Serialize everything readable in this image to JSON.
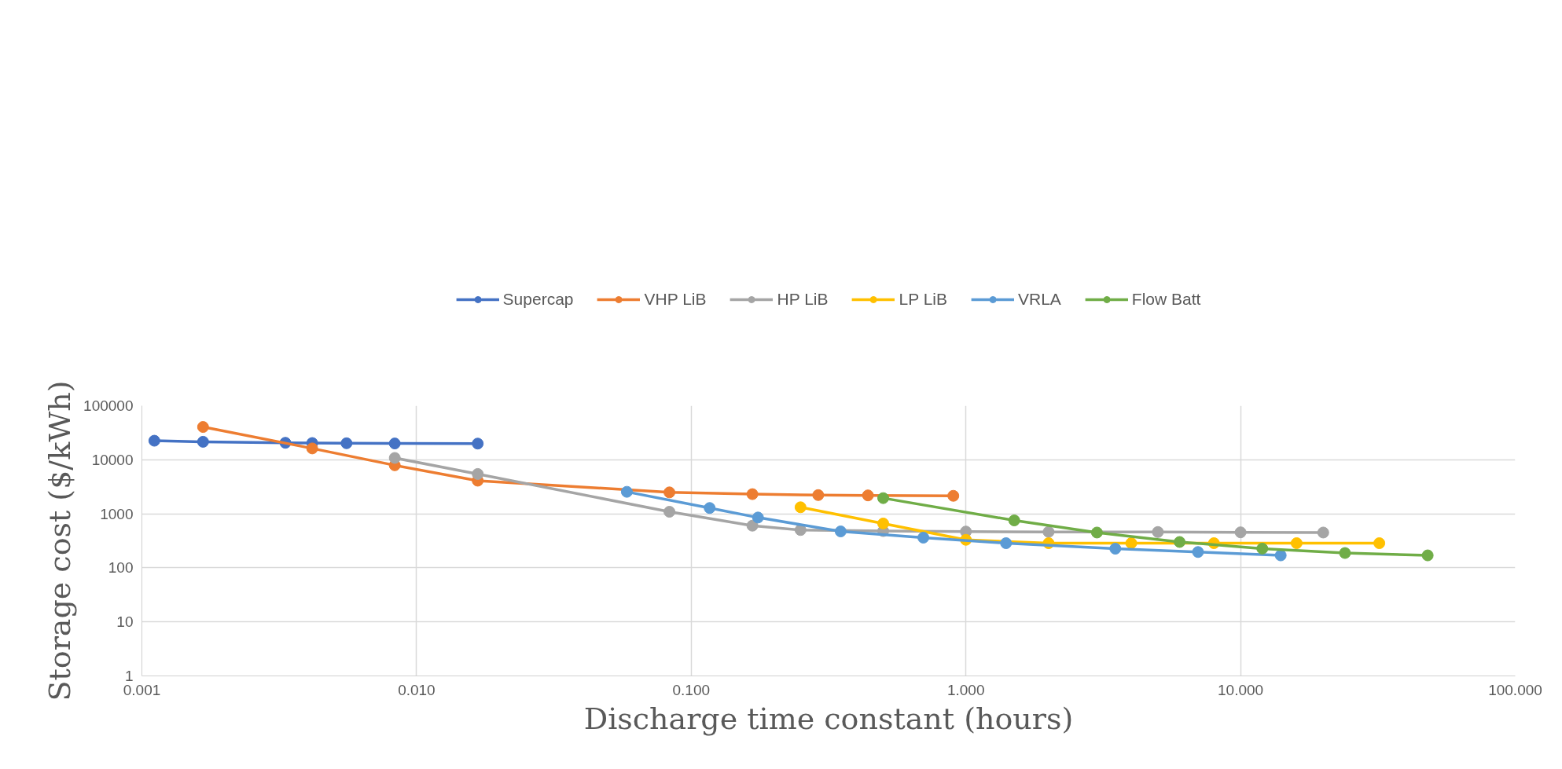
{
  "chart_data": {
    "type": "line",
    "xlabel": "Discharge time constant (hours)",
    "ylabel": "Storage cost ($/kWh)",
    "log": "xy",
    "grid": true,
    "legend": "top",
    "marker": "circle",
    "xlim": [
      0.001,
      100
    ],
    "ylim": [
      1,
      100000
    ],
    "xticks": [
      {
        "value": 0.001,
        "label": "0.001"
      },
      {
        "value": 0.01,
        "label": "0.010"
      },
      {
        "value": 0.1,
        "label": "0.100"
      },
      {
        "value": 1,
        "label": "1.000"
      },
      {
        "value": 10,
        "label": "10.000"
      },
      {
        "value": 100,
        "label": "100.000"
      }
    ],
    "yticks": [
      1,
      10,
      100,
      1000,
      10000,
      100000
    ],
    "series": [
      {
        "name": "Supercap",
        "color": "#4472c4",
        "x": [
          0.00111,
          0.00167,
          0.00333,
          0.00417,
          0.00556,
          0.00833,
          0.0167
        ],
        "values": [
          22500,
          21500,
          20600,
          20400,
          20200,
          20000,
          19900
        ]
      },
      {
        "name": "VHP LiB",
        "color": "#ed7d31",
        "x": [
          0.00167,
          0.00417,
          0.00833,
          0.0167,
          0.0833,
          0.167,
          0.29,
          0.44,
          0.9
        ],
        "values": [
          40400,
          16200,
          7900,
          4100,
          2490,
          2310,
          2220,
          2190,
          2150
        ]
      },
      {
        "name": "HP LiB",
        "color": "#a5a5a5",
        "x": [
          0.00833,
          0.0167,
          0.0833,
          0.167,
          0.25,
          0.5,
          1,
          2,
          5,
          10,
          20
        ],
        "values": [
          10800,
          5450,
          1090,
          603,
          501,
          479,
          469,
          462,
          460,
          454,
          450
        ]
      },
      {
        "name": "LP LiB",
        "color": "#ffc000",
        "x": [
          0.25,
          0.5,
          1,
          2,
          4,
          8,
          16,
          32
        ],
        "values": [
          1320,
          661,
          330,
          286,
          286,
          286,
          286,
          286
        ]
      },
      {
        "name": "VRLA",
        "color": "#5b9bd5",
        "x": [
          0.0583,
          0.1167,
          0.175,
          0.35,
          0.7,
          1.4,
          3.5,
          7,
          14
        ],
        "values": [
          2550,
          1280,
          853,
          472,
          362,
          286,
          226,
          196,
          170
        ]
      },
      {
        "name": "Flow Batt",
        "color": "#70ad47",
        "x": [
          0.5,
          1.5,
          3,
          6,
          12,
          24,
          48
        ],
        "values": [
          1950,
          754,
          450,
          301,
          227,
          188,
          170
        ]
      }
    ]
  }
}
